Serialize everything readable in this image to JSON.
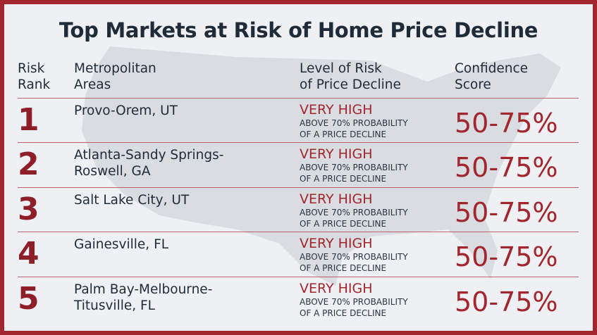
{
  "title": "Top Markets at Risk of Home Price Decline",
  "headers": {
    "rank": [
      "Risk",
      "Rank"
    ],
    "area": [
      "Metropolitan",
      "Areas"
    ],
    "level": [
      "Level of Risk",
      "of Price Decline"
    ],
    "score": [
      "Confidence",
      "Score"
    ]
  },
  "rows": [
    {
      "rank": "1",
      "area": [
        "Provo-Orem, UT",
        ""
      ],
      "level": "VERY HIGH",
      "detail": [
        "ABOVE 70% PROBABILITY",
        "OF A PRICE DECLINE"
      ],
      "score": "50-75%"
    },
    {
      "rank": "2",
      "area": [
        "Atlanta-Sandy Springs-",
        "Roswell, GA"
      ],
      "level": "VERY HIGH",
      "detail": [
        "ABOVE 70% PROBABILITY",
        "OF A PRICE DECLINE"
      ],
      "score": "50-75%"
    },
    {
      "rank": "3",
      "area": [
        "Salt Lake City, UT",
        ""
      ],
      "level": "VERY HIGH",
      "detail": [
        "ABOVE 70% PROBABILITY",
        "OF A PRICE DECLINE"
      ],
      "score": "50-75%"
    },
    {
      "rank": "4",
      "area": [
        "Gainesville, FL",
        ""
      ],
      "level": "VERY HIGH",
      "detail": [
        "ABOVE 70% PROBABILITY",
        "OF A PRICE DECLINE"
      ],
      "score": "50-75%"
    },
    {
      "rank": "5",
      "area": [
        "Palm Bay-Melbourne-",
        "Titusville, FL"
      ],
      "level": "VERY HIGH",
      "detail": [
        "ABOVE 70% PROBABILITY",
        "OF A PRICE DECLINE"
      ],
      "score": "50-75%"
    }
  ],
  "colors": {
    "border": "#a3252e",
    "accent": "#a3252e",
    "text": "#1f2b38",
    "background": "#eef0f3",
    "map": "#d9dce0"
  }
}
